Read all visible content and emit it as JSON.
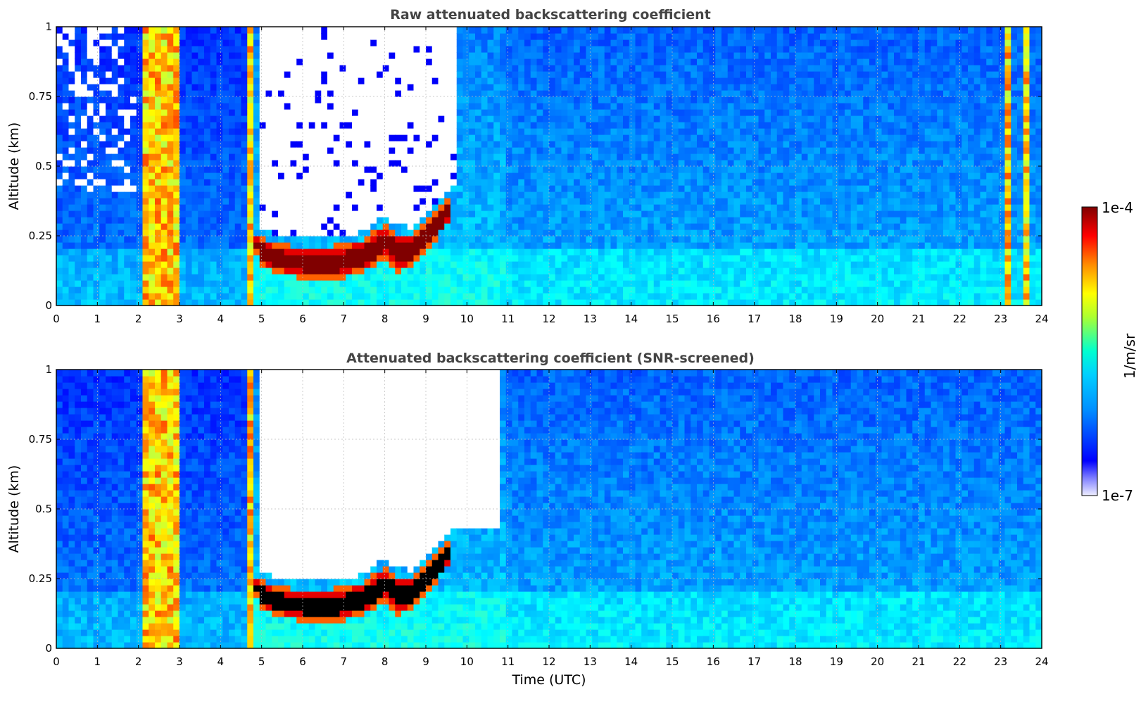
{
  "chart_data": [
    {
      "type": "heatmap",
      "title": "Raw attenuated backscattering coefficient",
      "ylabel": "Altitude (km)",
      "xlabel": "",
      "xlim": [
        0,
        24
      ],
      "ylim": [
        0,
        1
      ],
      "x_ticks": [
        "0",
        "1",
        "2",
        "3",
        "4",
        "5",
        "6",
        "7",
        "8",
        "9",
        "10",
        "11",
        "12",
        "13",
        "14",
        "15",
        "16",
        "17",
        "18",
        "19",
        "20",
        "21",
        "22",
        "23",
        "24"
      ],
      "y_ticks": [
        "0",
        "0.25",
        "0.5",
        "0.75",
        "1"
      ],
      "grid": true,
      "colorscale": "jet",
      "features": {
        "cloud_layer": {
          "time_utc": [
            4.8,
            5.0,
            5.5,
            6.0,
            6.5,
            7.0,
            7.5,
            8.0,
            8.3,
            8.6,
            9.0,
            9.3,
            9.6
          ],
          "base_km": [
            0.22,
            0.14,
            0.11,
            0.1,
            0.09,
            0.1,
            0.12,
            0.17,
            0.12,
            0.14,
            0.2,
            0.25,
            0.3
          ],
          "top_km": [
            0.26,
            0.24,
            0.22,
            0.21,
            0.21,
            0.22,
            0.24,
            0.29,
            0.26,
            0.25,
            0.3,
            0.34,
            0.4
          ]
        },
        "clear_region_time_utc": [
          4.9,
          9.7
        ],
        "vertical_streaks_utc": [
          2.15,
          2.3,
          2.55,
          2.8,
          2.95,
          4.75,
          23.2,
          23.6
        ]
      }
    },
    {
      "type": "heatmap",
      "title": "Attenuated backscattering coefficient (SNR-screened)",
      "ylabel": "Altitude (km)",
      "xlabel": "Time (UTC)",
      "xlim": [
        0,
        24
      ],
      "ylim": [
        0,
        1
      ],
      "x_ticks": [
        "0",
        "1",
        "2",
        "3",
        "4",
        "5",
        "6",
        "7",
        "8",
        "9",
        "10",
        "11",
        "12",
        "13",
        "14",
        "15",
        "16",
        "17",
        "18",
        "19",
        "20",
        "21",
        "22",
        "23",
        "24"
      ],
      "y_ticks": [
        "0",
        "0.25",
        "0.5",
        "0.75",
        "1"
      ],
      "grid": true,
      "colorscale": "jet",
      "features": {
        "cloud_layer": {
          "time_utc": [
            4.8,
            5.0,
            5.5,
            6.0,
            6.5,
            7.0,
            7.5,
            8.0,
            8.3,
            8.6,
            9.0,
            9.3,
            9.6
          ],
          "base_km": [
            0.22,
            0.14,
            0.11,
            0.1,
            0.09,
            0.1,
            0.12,
            0.17,
            0.12,
            0.14,
            0.2,
            0.25,
            0.3
          ],
          "top_km": [
            0.26,
            0.24,
            0.22,
            0.21,
            0.21,
            0.22,
            0.24,
            0.29,
            0.26,
            0.25,
            0.3,
            0.34,
            0.4
          ]
        },
        "saturated_color": "#000000",
        "masked_region_time_utc": [
          4.9,
          10.8
        ]
      }
    }
  ],
  "colorbar": {
    "max_label": "1e-4",
    "min_label": "1e-7",
    "unit_label": "1/m/sr",
    "stops": [
      "#eeeeff",
      "#0000ff",
      "#00bfff",
      "#00ffff",
      "#adff2f",
      "#ffff00",
      "#ff8c00",
      "#ff0000",
      "#800000"
    ]
  }
}
